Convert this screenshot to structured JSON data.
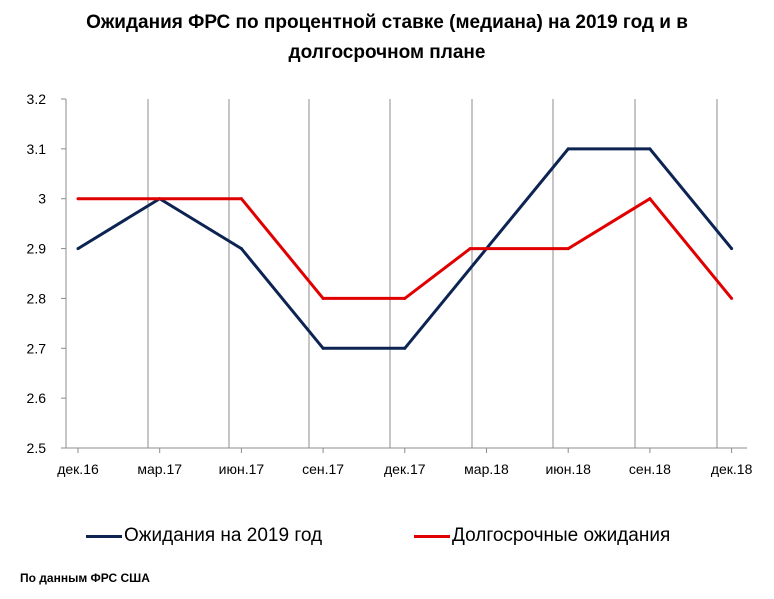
{
  "title": {
    "line1": "Ожидания ФРС по процентной ставке (медиана) на 2019 год и в",
    "line2": "долгосрочном плане"
  },
  "source_note": "По данным ФРС США",
  "chart_data": {
    "type": "line",
    "title": "Ожидания ФРС по процентной ставке (медиана) на 2019 год и в долгосрочном плане",
    "xlabel": "",
    "ylabel": "",
    "categories": [
      "дек.16",
      "мар.17",
      "июн.17",
      "сен.17",
      "дек.17",
      "мар.18",
      "июн.18",
      "сен.18",
      "дек.18"
    ],
    "yticks": [
      "2.5",
      "2.6",
      "2.7",
      "2.8",
      "2.9",
      "3",
      "3.1",
      "3.2"
    ],
    "ylim": [
      2.5,
      3.2
    ],
    "grid": "vertical",
    "legend_position": "bottom",
    "series": [
      {
        "name": "Ожидания на 2019 год",
        "color": "#0d2452",
        "x": [
          0,
          1,
          2,
          3,
          4,
          5,
          6,
          7,
          8
        ],
        "values": [
          2.9,
          3.0,
          2.9,
          2.7,
          2.7,
          2.9,
          3.1,
          3.1,
          2.9
        ]
      },
      {
        "name": "Долгосрочные ожидания",
        "color": "#e00000",
        "x": [
          0,
          1,
          2,
          3,
          4,
          4.8,
          6,
          7,
          8
        ],
        "values": [
          3.0,
          3.0,
          3.0,
          2.8,
          2.8,
          2.9,
          2.9,
          3.0,
          2.8
        ]
      }
    ]
  }
}
